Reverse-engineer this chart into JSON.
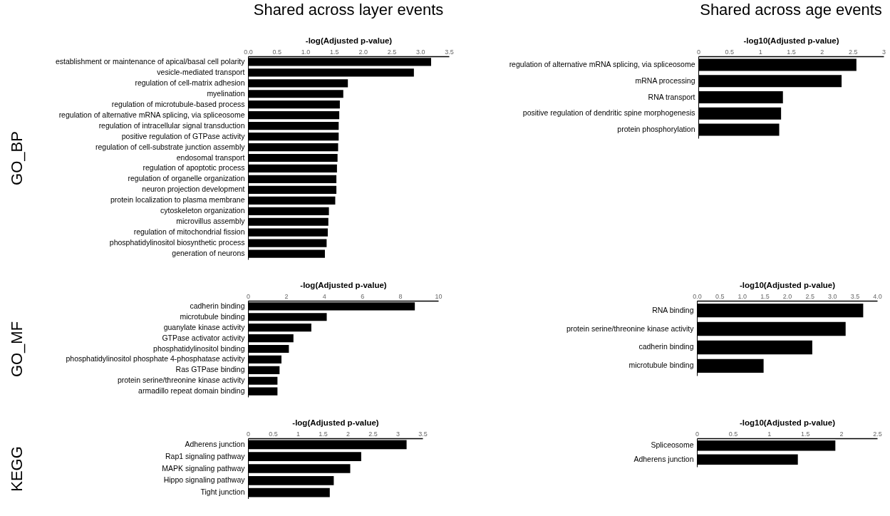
{
  "chart_data": [
    {
      "type": "bar",
      "orientation": "horizontal",
      "title": "Shared across layer events",
      "ylabel": "GO_BP",
      "xlabel": "-log(Adjusted p-value)",
      "color": "#000000",
      "categories": [
        "establishment or maintenance of apical/basal cell polarity",
        "vesicle-mediated transport",
        "regulation of cell-matrix adhesion",
        "myelination",
        "regulation of microtubule-based process",
        "regulation of alternative mRNA splicing, via spliceosome",
        "regulation of intracellular signal transduction",
        "positive regulation of GTPase activity",
        "regulation of cell-substrate junction assembly",
        "endosomal transport",
        "regulation of apoptotic process",
        "regulation of organelle organization",
        "neuron projection development",
        "protein localization to plasma membrane",
        "cytoskeleton organization",
        "microvillus assembly",
        "regulation of mitochondrial fission",
        "phosphatidylinositol biosynthetic process",
        "generation of neurons"
      ],
      "values": [
        3.19,
        2.89,
        1.74,
        1.66,
        1.6,
        1.59,
        1.58,
        1.58,
        1.57,
        1.56,
        1.55,
        1.54,
        1.54,
        1.52,
        1.41,
        1.4,
        1.39,
        1.37,
        1.34
      ],
      "xlim": [
        0,
        3.5
      ],
      "xticks": [
        {
          "value": 0,
          "label": "0.0"
        },
        0.5,
        {
          "value": 1,
          "label": "1.0"
        },
        1.5,
        {
          "value": 2,
          "label": "2.0"
        },
        2.5,
        {
          "value": 3,
          "label": "3.0"
        },
        3.5
      ]
    },
    {
      "type": "bar",
      "orientation": "horizontal",
      "title": "Shared across age events",
      "xlabel": "-log10(Adjusted p-value)",
      "color": "#000000",
      "categories": [
        "regulation of alternative mRNA splicing, via spliceosome",
        "mRNA processing",
        "RNA transport",
        "positive regulation of dendritic spine morphogenesis",
        "protein phosphorylation"
      ],
      "values": [
        2.56,
        2.32,
        1.37,
        1.34,
        1.31
      ],
      "xlim": [
        0,
        3
      ],
      "xticks": [
        0,
        0.5,
        1,
        1.5,
        2,
        2.5,
        3
      ]
    },
    {
      "type": "bar",
      "orientation": "horizontal",
      "ylabel": "GO_MF",
      "xlabel": "-log(Adjusted p-value)",
      "color": "#000000",
      "categories": [
        "cadherin binding",
        "microtubule binding",
        "guanylate kinase activity",
        "GTPase activator activity",
        "phosphatidylinositol binding",
        "phosphatidylinositol phosphate 4-phosphatase activity",
        "Ras GTPase binding",
        "protein serine/threonine kinase activity",
        "armadillo repeat domain binding"
      ],
      "values": [
        8.77,
        4.14,
        3.33,
        2.39,
        2.15,
        1.76,
        1.66,
        1.55,
        1.55
      ],
      "xlim": [
        0,
        10
      ],
      "xticks": [
        0,
        2,
        4,
        6,
        8,
        10
      ]
    },
    {
      "type": "bar",
      "orientation": "horizontal",
      "xlabel": "-log10(Adjusted p-value)",
      "color": "#000000",
      "categories": [
        "RNA binding",
        "protein serine/threonine kinase activity",
        "cadherin binding",
        "microtubule binding"
      ],
      "values": [
        3.69,
        3.3,
        2.56,
        1.48
      ],
      "xlim": [
        0,
        4
      ],
      "xticks": [
        {
          "value": 0,
          "label": "0.0"
        },
        0.5,
        {
          "value": 1,
          "label": "1.0"
        },
        1.5,
        {
          "value": 2,
          "label": "2.0"
        },
        2.5,
        {
          "value": 3,
          "label": "3.0"
        },
        3.5,
        {
          "value": 4,
          "label": "4.0"
        }
      ]
    },
    {
      "type": "bar",
      "orientation": "horizontal",
      "ylabel": "KEGG",
      "xlabel": "-log(Adjusted p-value)",
      "color": "#000000",
      "categories": [
        "Adherens junction",
        "Rap1 signaling pathway",
        "MAPK signaling pathway",
        "Hippo signaling pathway",
        "Tight junction"
      ],
      "values": [
        3.18,
        2.27,
        2.05,
        1.72,
        1.64
      ],
      "xlim": [
        0,
        3.5
      ],
      "xticks": [
        0,
        0.5,
        1,
        1.5,
        2,
        2.5,
        3,
        3.5
      ]
    },
    {
      "type": "bar",
      "orientation": "horizontal",
      "xlabel": "-log10(Adjusted p-value)",
      "color": "#000000",
      "categories": [
        "Spliceosome",
        "Adherens junction"
      ],
      "values": [
        1.92,
        1.4
      ],
      "xlim": [
        0,
        2.5
      ],
      "xticks": [
        0,
        0.5,
        1,
        1.5,
        2,
        2.5
      ]
    }
  ]
}
